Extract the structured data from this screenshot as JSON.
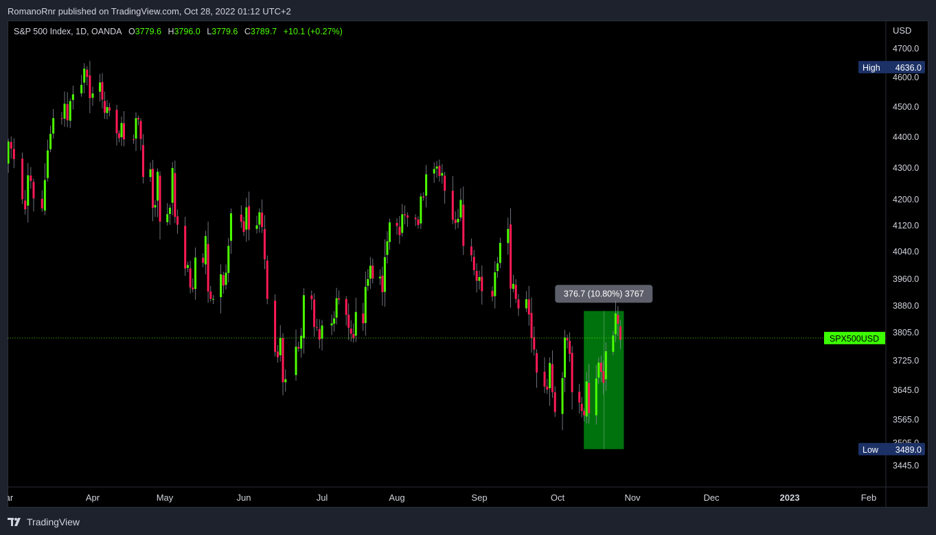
{
  "header": {
    "publisher": "RomanoRnr published on TradingView.com, Oct 28, 2022 01:12 UTC+2"
  },
  "legend": {
    "symbol": "S&P 500 Index, 1D, OANDA",
    "open_label": "O",
    "open": "3779.6",
    "high_label": "H",
    "high": "3796.0",
    "low_label": "L",
    "low": "3779.6",
    "close_label": "C",
    "close": "3789.7",
    "change": "+10.1 (+0.27%)"
  },
  "footer": {
    "brand": "TradingView"
  },
  "colors": {
    "up": "#4cff00",
    "down": "#ff1a55",
    "measure_fill": "#00780e",
    "label_bg": "#1c3166",
    "price_badge": "#3cff00"
  },
  "chart_data": {
    "type": "candlestick",
    "currency_label": "USD",
    "y_ticks": [
      4700,
      4600,
      4500,
      4400,
      4300,
      4200,
      4120,
      4040,
      3960,
      3880,
      3805,
      3725,
      3645,
      3565,
      3505,
      3445
    ],
    "y_tick_labels": [
      "4700.0",
      "4600.0",
      "4500.0",
      "4400.0",
      "4300.0",
      "4200.0",
      "4120.0",
      "4040.0",
      "3960.0",
      "3880.0",
      "3805.0",
      "3725.0",
      "3645.0",
      "3565.0",
      "3505.0",
      "3445.0"
    ],
    "x_labels": [
      {
        "label": "Mar",
        "date": "2022-03-01",
        "bold": false
      },
      {
        "label": "Apr",
        "date": "2022-04-01",
        "bold": false
      },
      {
        "label": "May",
        "date": "2022-05-01",
        "bold": false
      },
      {
        "label": "Jun",
        "date": "2022-06-01",
        "bold": false
      },
      {
        "label": "Jul",
        "date": "2022-07-01",
        "bold": false
      },
      {
        "label": "Aug",
        "date": "2022-08-01",
        "bold": false
      },
      {
        "label": "Sep",
        "date": "2022-09-01",
        "bold": false
      },
      {
        "label": "Oct",
        "date": "2022-10-01",
        "bold": false
      },
      {
        "label": "Nov",
        "date": "2022-11-01",
        "bold": false
      },
      {
        "label": "Dec",
        "date": "2022-12-01",
        "bold": false
      },
      {
        "label": "2023",
        "date": "2023-01-01",
        "bold": true
      },
      {
        "label": "Feb",
        "date": "2023-02-01",
        "bold": false
      }
    ],
    "high_marker": {
      "label": "High",
      "value": "4636.0"
    },
    "low_marker": {
      "label": "Low",
      "value": "3489.0"
    },
    "current_price": 3789.7,
    "current_label": "SPX500USD",
    "measure": {
      "start_date": "2022-10-13",
      "end_date": "2022-10-27",
      "low": 3489.0,
      "high": 3865.7,
      "label": "376.7 (10.80%) 3767"
    },
    "closes": [
      [
        "2022-03-01",
        4306
      ],
      [
        "2022-03-02",
        4386
      ],
      [
        "2022-03-03",
        4363
      ],
      [
        "2022-03-04",
        4329
      ],
      [
        "2022-03-07",
        4201
      ],
      [
        "2022-03-08",
        4170
      ],
      [
        "2022-03-09",
        4277
      ],
      [
        "2022-03-10",
        4259
      ],
      [
        "2022-03-11",
        4204
      ],
      [
        "2022-03-14",
        4173
      ],
      [
        "2022-03-15",
        4262
      ],
      [
        "2022-03-16",
        4357
      ],
      [
        "2022-03-17",
        4411
      ],
      [
        "2022-03-18",
        4463
      ],
      [
        "2022-03-21",
        4461
      ],
      [
        "2022-03-22",
        4511
      ],
      [
        "2022-03-23",
        4456
      ],
      [
        "2022-03-24",
        4520
      ],
      [
        "2022-03-25",
        4543
      ],
      [
        "2022-03-28",
        4575
      ],
      [
        "2022-03-29",
        4631
      ],
      [
        "2022-03-30",
        4602
      ],
      [
        "2022-03-31",
        4530
      ],
      [
        "2022-04-01",
        4546
      ],
      [
        "2022-04-04",
        4583
      ],
      [
        "2022-04-05",
        4525
      ],
      [
        "2022-04-06",
        4481
      ],
      [
        "2022-04-07",
        4500
      ],
      [
        "2022-04-08",
        4488
      ],
      [
        "2022-04-11",
        4413
      ],
      [
        "2022-04-12",
        4397
      ],
      [
        "2022-04-13",
        4447
      ],
      [
        "2022-04-14",
        4393
      ],
      [
        "2022-04-18",
        4391
      ],
      [
        "2022-04-19",
        4463
      ],
      [
        "2022-04-20",
        4459
      ],
      [
        "2022-04-21",
        4394
      ],
      [
        "2022-04-22",
        4272
      ],
      [
        "2022-04-25",
        4296
      ],
      [
        "2022-04-26",
        4175
      ],
      [
        "2022-04-27",
        4183
      ],
      [
        "2022-04-28",
        4288
      ],
      [
        "2022-04-29",
        4132
      ],
      [
        "2022-05-02",
        4155
      ],
      [
        "2022-05-03",
        4175
      ],
      [
        "2022-05-04",
        4300
      ],
      [
        "2022-05-05",
        4147
      ],
      [
        "2022-05-06",
        4123
      ],
      [
        "2022-05-09",
        3991
      ],
      [
        "2022-05-10",
        4001
      ],
      [
        "2022-05-11",
        3935
      ],
      [
        "2022-05-12",
        3930
      ],
      [
        "2022-05-13",
        4023
      ],
      [
        "2022-05-16",
        4008
      ],
      [
        "2022-05-17",
        4088
      ],
      [
        "2022-05-18",
        3923
      ],
      [
        "2022-05-19",
        3901
      ],
      [
        "2022-05-20",
        3901
      ],
      [
        "2022-05-23",
        3974
      ],
      [
        "2022-05-24",
        3941
      ],
      [
        "2022-05-25",
        3979
      ],
      [
        "2022-05-26",
        4058
      ],
      [
        "2022-05-27",
        4158
      ],
      [
        "2022-05-31",
        4132
      ],
      [
        "2022-06-01",
        4101
      ],
      [
        "2022-06-02",
        4176
      ],
      [
        "2022-06-03",
        4108
      ],
      [
        "2022-06-06",
        4121
      ],
      [
        "2022-06-07",
        4161
      ],
      [
        "2022-06-08",
        4116
      ],
      [
        "2022-06-09",
        4018
      ],
      [
        "2022-06-10",
        3901
      ],
      [
        "2022-06-13",
        3750
      ],
      [
        "2022-06-14",
        3735
      ],
      [
        "2022-06-15",
        3790
      ],
      [
        "2022-06-16",
        3667
      ],
      [
        "2022-06-17",
        3675
      ],
      [
        "2022-06-21",
        3765
      ],
      [
        "2022-06-22",
        3760
      ],
      [
        "2022-06-23",
        3796
      ],
      [
        "2022-06-24",
        3912
      ],
      [
        "2022-06-27",
        3900
      ],
      [
        "2022-06-28",
        3821
      ],
      [
        "2022-06-29",
        3819
      ],
      [
        "2022-06-30",
        3785
      ],
      [
        "2022-07-01",
        3825
      ],
      [
        "2022-07-05",
        3831
      ],
      [
        "2022-07-06",
        3845
      ],
      [
        "2022-07-07",
        3903
      ],
      [
        "2022-07-08",
        3899
      ],
      [
        "2022-07-11",
        3855
      ],
      [
        "2022-07-12",
        3819
      ],
      [
        "2022-07-13",
        3802
      ],
      [
        "2022-07-14",
        3790
      ],
      [
        "2022-07-15",
        3863
      ],
      [
        "2022-07-18",
        3831
      ],
      [
        "2022-07-19",
        3937
      ],
      [
        "2022-07-20",
        3960
      ],
      [
        "2022-07-21",
        3999
      ],
      [
        "2022-07-22",
        3962
      ],
      [
        "2022-07-25",
        3967
      ],
      [
        "2022-07-26",
        3921
      ],
      [
        "2022-07-27",
        4024
      ],
      [
        "2022-07-28",
        4072
      ],
      [
        "2022-07-29",
        4130
      ],
      [
        "2022-08-01",
        4119
      ],
      [
        "2022-08-02",
        4091
      ],
      [
        "2022-08-03",
        4155
      ],
      [
        "2022-08-04",
        4152
      ],
      [
        "2022-08-05",
        4145
      ],
      [
        "2022-08-08",
        4140
      ],
      [
        "2022-08-09",
        4122
      ],
      [
        "2022-08-10",
        4210
      ],
      [
        "2022-08-11",
        4207
      ],
      [
        "2022-08-12",
        4280
      ],
      [
        "2022-08-15",
        4297
      ],
      [
        "2022-08-16",
        4305
      ],
      [
        "2022-08-17",
        4275
      ],
      [
        "2022-08-18",
        4284
      ],
      [
        "2022-08-19",
        4228
      ],
      [
        "2022-08-22",
        4138
      ],
      [
        "2022-08-23",
        4128
      ],
      [
        "2022-08-24",
        4141
      ],
      [
        "2022-08-25",
        4199
      ],
      [
        "2022-08-26",
        4058
      ],
      [
        "2022-08-29",
        4030
      ],
      [
        "2022-08-30",
        3986
      ],
      [
        "2022-08-31",
        3955
      ],
      [
        "2022-09-01",
        3966
      ],
      [
        "2022-09-02",
        3924
      ],
      [
        "2022-09-06",
        3908
      ],
      [
        "2022-09-07",
        3980
      ],
      [
        "2022-09-08",
        4006
      ],
      [
        "2022-09-09",
        4067
      ],
      [
        "2022-09-12",
        4110
      ],
      [
        "2022-09-13",
        3932
      ],
      [
        "2022-09-14",
        3946
      ],
      [
        "2022-09-15",
        3901
      ],
      [
        "2022-09-16",
        3873
      ],
      [
        "2022-09-19",
        3900
      ],
      [
        "2022-09-20",
        3856
      ],
      [
        "2022-09-21",
        3790
      ],
      [
        "2022-09-22",
        3757
      ],
      [
        "2022-09-23",
        3693
      ],
      [
        "2022-09-26",
        3655
      ],
      [
        "2022-09-27",
        3647
      ],
      [
        "2022-09-28",
        3719
      ],
      [
        "2022-09-29",
        3640
      ],
      [
        "2022-09-30",
        3586
      ],
      [
        "2022-10-03",
        3678
      ],
      [
        "2022-10-04",
        3791
      ],
      [
        "2022-10-05",
        3783
      ],
      [
        "2022-10-06",
        3745
      ],
      [
        "2022-10-07",
        3640
      ],
      [
        "2022-10-10",
        3612
      ],
      [
        "2022-10-11",
        3589
      ],
      [
        "2022-10-12",
        3577
      ],
      [
        "2022-10-13",
        3669
      ],
      [
        "2022-10-14",
        3583
      ],
      [
        "2022-10-17",
        3677
      ],
      [
        "2022-10-18",
        3720
      ],
      [
        "2022-10-19",
        3695
      ],
      [
        "2022-10-20",
        3665
      ],
      [
        "2022-10-21",
        3752
      ],
      [
        "2022-10-24",
        3797
      ],
      [
        "2022-10-25",
        3859
      ],
      [
        "2022-10-26",
        3830
      ],
      [
        "2022-10-27",
        3785
      ]
    ]
  }
}
